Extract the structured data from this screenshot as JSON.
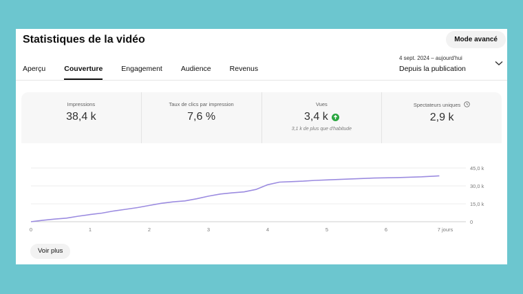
{
  "header": {
    "title": "Statistiques de la vidéo",
    "mode_button": "Mode avancé"
  },
  "tabs": [
    {
      "label": "Aperçu",
      "active": false
    },
    {
      "label": "Couverture",
      "active": true
    },
    {
      "label": "Engagement",
      "active": false
    },
    {
      "label": "Audience",
      "active": false
    },
    {
      "label": "Revenus",
      "active": false
    }
  ],
  "date_range": {
    "range": "4 sept. 2024 – aujourd'hui",
    "label": "Depuis la publication"
  },
  "metrics": [
    {
      "label": "Impressions",
      "value": "38,4 k"
    },
    {
      "label": "Taux de clics par impression",
      "value": "7,6 %"
    },
    {
      "label": "Vues",
      "value": "3,4 k",
      "sub": "3,1 k de plus que d'habitude"
    },
    {
      "label": "Spectateurs uniques",
      "value": "2,9 k"
    }
  ],
  "chart_data": {
    "type": "line",
    "x_ticks": [
      "0",
      "1",
      "2",
      "3",
      "4",
      "5",
      "6",
      "7 jours"
    ],
    "y_ticks": [
      "45,0 k",
      "30,0 k",
      "15,0 k",
      "0"
    ],
    "ylim": [
      0,
      45000
    ],
    "xlim": [
      0,
      7
    ],
    "series": [
      {
        "color": "#9b8be0",
        "x": [
          0,
          0.2,
          0.4,
          0.6,
          0.8,
          1.0,
          1.2,
          1.4,
          1.6,
          1.8,
          2.0,
          2.2,
          2.4,
          2.6,
          2.8,
          3.0,
          3.2,
          3.4,
          3.6,
          3.8,
          4.0,
          4.2,
          4.4,
          4.6,
          4.8,
          5.0,
          5.4,
          5.8,
          6.2,
          6.6,
          6.9
        ],
        "y": [
          0,
          1200,
          2200,
          3000,
          4600,
          6000,
          7200,
          9000,
          10400,
          11800,
          13600,
          15400,
          16600,
          17400,
          19200,
          21400,
          23200,
          24200,
          25000,
          27000,
          31000,
          33200,
          33600,
          34000,
          34600,
          35000,
          35800,
          36600,
          37000,
          37600,
          38400
        ]
      }
    ]
  },
  "footer": {
    "more_button": "Voir plus"
  }
}
